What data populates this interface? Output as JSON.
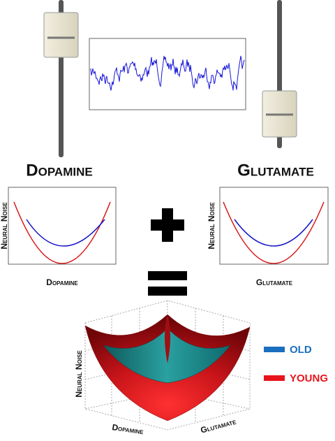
{
  "panels": [
    {
      "title": "Dopamine",
      "y_label": "Neural Noise",
      "x_label": "Dopamine"
    },
    {
      "title": "Glutamate",
      "y_label": "Neural Noise",
      "x_label": "Glutamate"
    }
  ],
  "surface": {
    "z_label": "Neural Noise",
    "x_label": "Dopamine",
    "y_label": "Glutamate"
  },
  "legend": [
    {
      "label": "OLD",
      "color": "#1a6fbf"
    },
    {
      "label": "YOUNG",
      "color": "#e8141b"
    }
  ]
}
